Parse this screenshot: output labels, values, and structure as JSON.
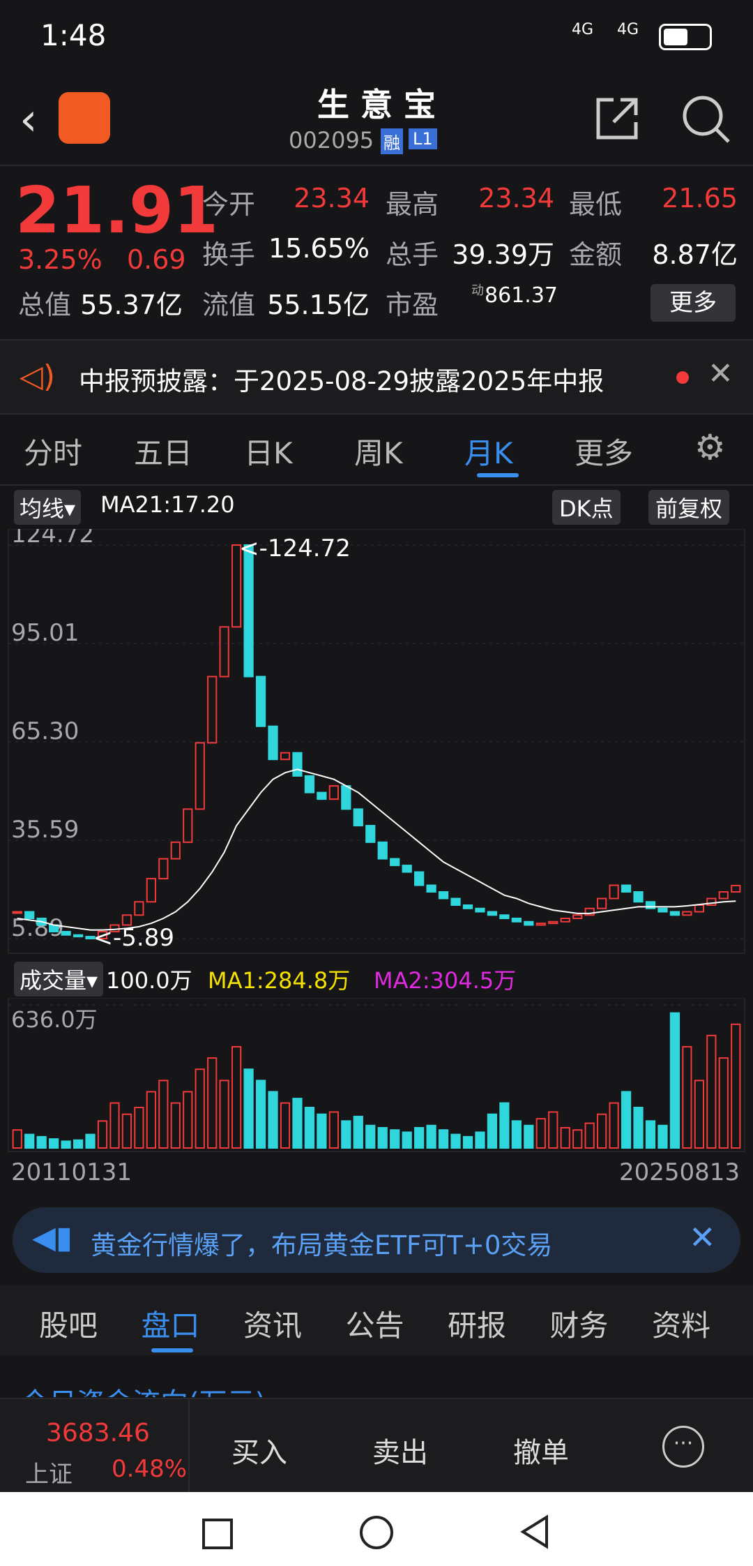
{
  "status": {
    "time": "1:48",
    "net1": "4G",
    "net2": "4G"
  },
  "header": {
    "title": "生 意 宝",
    "code": "002095",
    "tag1": "融",
    "tag2": "L1"
  },
  "quote": {
    "price": "21.91",
    "pct": "3.25%",
    "change": "0.69",
    "items": [
      [
        "今开",
        "23.34"
      ],
      [
        "最高",
        "23.34"
      ],
      [
        "最低",
        "21.65"
      ],
      [
        "换手",
        "15.65%"
      ],
      [
        "总手",
        "39.39万"
      ],
      [
        "金额",
        "8.87亿"
      ],
      [
        "总值",
        "55.37亿"
      ],
      [
        "流值",
        "55.15亿"
      ],
      [
        "市盈",
        "861.37"
      ]
    ],
    "pe_sup": "动",
    "more": "更多"
  },
  "notice": "中报预披露：于2025-08-29披露2025年中报",
  "tabs": {
    "items": [
      "分时",
      "五日",
      "日K",
      "周K",
      "月K",
      "更多"
    ],
    "active": 4
  },
  "toolbar": {
    "ma_btn": "均线",
    "ma": "MA21:17.20",
    "dk": "DK点",
    "adj": "前复权"
  },
  "chart_data": [
    {
      "type": "candlestick",
      "yticks": [
        124.72,
        95.01,
        {
          "value": 65.3,
          "label": "65.30"
        },
        35.59,
        5.89
      ],
      "ylim": [
        5.89,
        124.72
      ],
      "annotations": [
        "<-124.72",
        "<-5.89"
      ],
      "close": [
        14,
        12,
        10,
        8,
        7,
        6.5,
        5.89,
        8,
        10,
        13,
        17,
        24,
        30,
        35,
        45,
        65,
        85,
        100,
        124.72,
        85,
        70,
        60,
        62,
        55,
        50,
        48,
        52,
        45,
        40,
        35,
        30,
        28,
        26,
        22,
        20,
        18,
        16,
        15,
        14,
        13,
        12,
        11,
        10,
        10.5,
        11,
        12,
        13,
        15,
        18,
        22,
        20,
        17,
        15,
        14,
        13,
        14,
        16,
        18,
        20,
        21.91
      ],
      "ma": [
        12,
        11.5,
        11,
        10,
        9.5,
        9,
        8.5,
        8.5,
        8.7,
        9,
        9.5,
        10.5,
        12,
        14,
        17,
        21,
        26,
        32,
        40,
        45,
        50,
        54,
        56,
        57,
        56,
        55,
        54,
        52,
        50,
        47,
        44,
        41,
        38,
        35,
        32,
        29,
        27,
        25,
        23,
        21,
        19,
        18,
        16.5,
        15.5,
        14.5,
        14,
        13.5,
        13.5,
        14,
        14.5,
        15,
        15.5,
        15.5,
        15.5,
        15.5,
        15.8,
        16.2,
        16.6,
        17,
        17.2
      ],
      "colors": {
        "up": "#f23a3a",
        "down": "#2fd6dc",
        "ma": "#ffffff"
      }
    },
    {
      "type": "bar",
      "title": "成交量",
      "unit": "100.0万",
      "ma1": "MA1:284.8万",
      "ma2": "MA2:304.5万",
      "ylim": [
        0,
        636
      ],
      "yticks": [
        {
          "value": 636,
          "label": "636.0万"
        }
      ],
      "values": [
        80,
        60,
        50,
        40,
        30,
        35,
        60,
        120,
        200,
        150,
        180,
        250,
        300,
        200,
        250,
        350,
        400,
        300,
        450,
        350,
        300,
        250,
        200,
        220,
        180,
        150,
        160,
        120,
        140,
        100,
        90,
        80,
        70,
        90,
        100,
        80,
        60,
        50,
        70,
        150,
        200,
        120,
        100,
        130,
        160,
        90,
        80,
        110,
        150,
        200,
        250,
        180,
        120,
        100,
        600,
        450,
        300,
        500,
        400,
        550
      ],
      "x_start": "20110131",
      "x_end": "20250813"
    }
  ],
  "banner": "黄金行情爆了，布局黄金ETF可T+0交易",
  "bottom_tabs": {
    "items": [
      "股吧",
      "盘口",
      "资讯",
      "公告",
      "研报",
      "财务",
      "资料"
    ],
    "active": 1
  },
  "flow_title": "今日资金流向(万元)",
  "footer": {
    "index_value": "3683.46",
    "index_name": "上证",
    "index_pct": "0.48%",
    "actions": [
      "买入",
      "卖出",
      "撤单"
    ]
  }
}
